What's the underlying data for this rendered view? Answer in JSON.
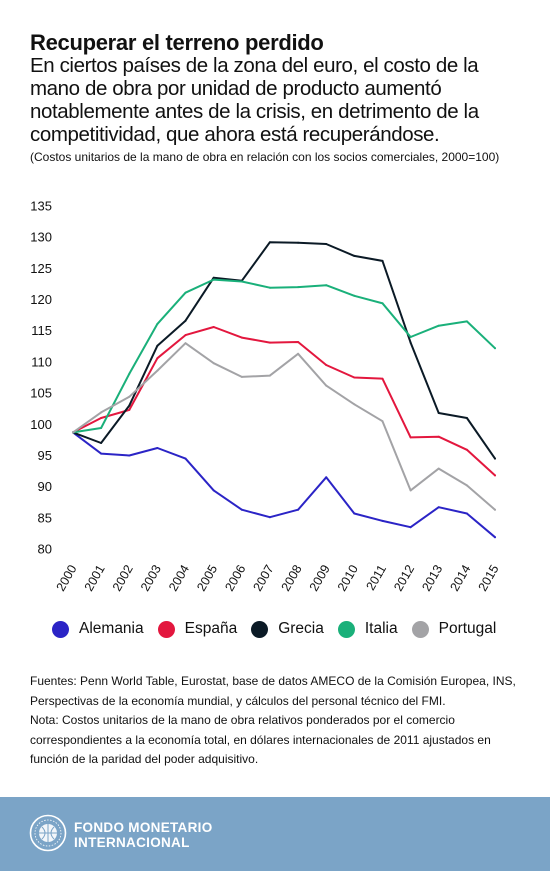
{
  "header": {
    "title": "Recuperar el terreno perdido",
    "subtitle": "En ciertos países de la zona del euro, el costo de la mano de obra por unidad de producto aumentó notablemente antes de la crisis, en detrimento de la competitividad, que ahora está recuperándose.",
    "note": "(Costos unitarios de la mano de obra en relación con los socios comerciales, 2000=100)"
  },
  "chart_data": {
    "type": "line",
    "x": [
      "2000",
      "2001",
      "2002",
      "2003",
      "2004",
      "2005",
      "2006",
      "2007",
      "2008",
      "2009",
      "2010",
      "2011",
      "2012",
      "2013",
      "2014",
      "2015"
    ],
    "yticks": [
      80,
      85,
      90,
      95,
      100,
      105,
      110,
      115,
      120,
      125,
      130,
      135
    ],
    "ylim": [
      80,
      135
    ],
    "grid": false,
    "legend_position": "bottom",
    "series": [
      {
        "name": "Alemania",
        "color": "#2b24c6",
        "values": [
          98.7,
          95.3,
          95.0,
          96.2,
          94.5,
          89.4,
          86.3,
          85.1,
          86.3,
          91.5,
          85.7,
          84.5,
          83.5,
          86.7,
          85.7,
          81.9
        ]
      },
      {
        "name": "España",
        "color": "#e3173e",
        "values": [
          98.7,
          101.0,
          102.3,
          110.6,
          114.3,
          115.6,
          113.9,
          113.1,
          113.2,
          109.5,
          107.5,
          107.3,
          97.9,
          98.0,
          95.9,
          91.8
        ]
      },
      {
        "name": "Grecia",
        "color": "#0b1a26",
        "values": [
          98.7,
          97.0,
          103.0,
          112.6,
          116.6,
          123.5,
          123.0,
          129.2,
          129.1,
          128.9,
          127.0,
          126.2,
          113.1,
          101.8,
          101.0,
          94.5
        ]
      },
      {
        "name": "Italia",
        "color": "#1ab07a",
        "values": [
          98.7,
          99.4,
          108.1,
          116.1,
          121.1,
          123.2,
          122.9,
          121.9,
          122.0,
          122.3,
          120.6,
          119.4,
          114.0,
          115.8,
          116.5,
          112.2
        ]
      },
      {
        "name": "Portugal",
        "color": "#a3a3a6",
        "values": [
          98.7,
          101.9,
          104.4,
          108.6,
          113.0,
          109.8,
          107.6,
          107.8,
          111.3,
          106.2,
          103.2,
          100.5,
          89.4,
          92.9,
          90.2,
          86.3
        ]
      }
    ]
  },
  "sources": {
    "line1": "Fuentes: Penn World Table, Eurostat, base de datos AMECO de la Comisión Europea, INS, Perspectivas de la economía mundial, y cálculos del personal técnico del FMI.",
    "line2": "Nota: Costos unitarios de la mano de obra relativos ponderados por el comercio correspondientes a la economía total, en dólares internacionales de 2011 ajustados en función de la paridad del poder adquisitivo."
  },
  "footer": {
    "org_line1": "FONDO MONETARIO",
    "org_line2": "INTERNACIONAL",
    "logo_icon": "imf-seal-icon"
  }
}
